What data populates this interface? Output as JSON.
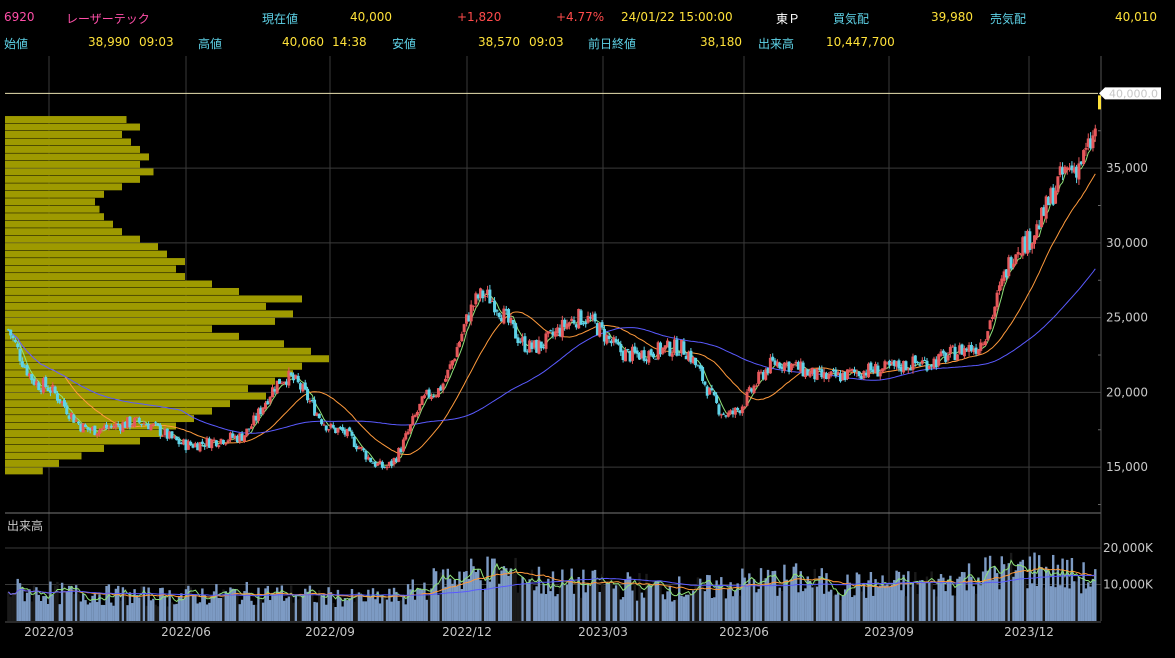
{
  "header": {
    "code": "6920",
    "name": "レーザーテック",
    "price_label": "現在値",
    "price": "40,000",
    "change": "+1,820",
    "change_pct": "+4.77%",
    "datetime": "24/01/22  15:00:00",
    "market": "東Ｐ",
    "bid_label": "買気配",
    "bid": "39,980",
    "ask_label": "売気配",
    "ask": "40,010",
    "open_label": "始値",
    "open": "38,990",
    "open_time": "09:03",
    "high_label": "高値",
    "high": "40,060",
    "high_time": "14:38",
    "low_label": "安値",
    "low": "38,570",
    "low_time": "09:03",
    "prev_close_label": "前日終値",
    "prev_close": "38,180",
    "volume_label": "出来高",
    "volume": "10,447,700"
  },
  "chart_data": {
    "type": "candlestick",
    "price_axis": {
      "ticks": [
        15000,
        20000,
        25000,
        30000,
        35000
      ],
      "tick_labels": [
        "15,000",
        "20,000",
        "25,000",
        "30,000",
        "35,000"
      ],
      "ylim": [
        12000,
        42500
      ]
    },
    "last_price_marker": "40,000.0",
    "last_price": 40000,
    "volume_panel": {
      "label": "出来高",
      "ticks": [
        10000,
        20000
      ],
      "tick_labels": [
        "10,000K",
        "20,000K"
      ],
      "ylim": [
        0,
        23000
      ]
    },
    "x_ticks": [
      "2022/03",
      "2022/06",
      "2022/09",
      "2022/12",
      "2023/03",
      "2023/06",
      "2023/09",
      "2023/12"
    ],
    "grid": true,
    "series": [
      {
        "name": "price",
        "x": [
          "2022/02",
          "2022/03",
          "2022/04",
          "2022/05",
          "2022/06",
          "2022/07",
          "2022/08",
          "2022/09",
          "2022/10",
          "2022/11",
          "2022/12",
          "2023/01",
          "2023/02",
          "2023/03",
          "2023/04",
          "2023/05",
          "2023/06",
          "2023/07",
          "2023/08",
          "2023/09",
          "2023/10",
          "2023/11",
          "2023/12",
          "2024/01"
        ],
        "values": [
          25500,
          20500,
          17500,
          18000,
          16500,
          17000,
          21000,
          17500,
          15000,
          20000,
          26500,
          23000,
          25000,
          22500,
          23000,
          18500,
          22000,
          21000,
          21500,
          22000,
          23000,
          30000,
          35000,
          40000
        ]
      },
      {
        "name": "volume",
        "x": [
          "2022/02",
          "2022/03",
          "2022/04",
          "2022/05",
          "2022/06",
          "2022/07",
          "2022/08",
          "2022/09",
          "2022/10",
          "2022/11",
          "2022/12",
          "2023/01",
          "2023/02",
          "2023/03",
          "2023/04",
          "2023/05",
          "2023/06",
          "2023/07",
          "2023/08",
          "2023/09",
          "2023/10",
          "2023/11",
          "2023/12",
          "2024/01"
        ],
        "values": [
          9000,
          8000,
          7500,
          7000,
          7500,
          8000,
          7500,
          6500,
          7000,
          13000,
          14000,
          11000,
          10500,
          10000,
          9000,
          11000,
          12000,
          10000,
          10500,
          11000,
          14000,
          15000,
          12000,
          11000
        ]
      }
    ],
    "volume_profile": [
      {
        "price": 14750,
        "size": 42
      },
      {
        "price": 15250,
        "size": 60
      },
      {
        "price": 15750,
        "size": 85
      },
      {
        "price": 16250,
        "size": 110
      },
      {
        "price": 16750,
        "size": 150
      },
      {
        "price": 17250,
        "size": 175
      },
      {
        "price": 17750,
        "size": 190
      },
      {
        "price": 18250,
        "size": 210
      },
      {
        "price": 18750,
        "size": 230
      },
      {
        "price": 19250,
        "size": 250
      },
      {
        "price": 19750,
        "size": 290
      },
      {
        "price": 20250,
        "size": 270
      },
      {
        "price": 20750,
        "size": 300
      },
      {
        "price": 21250,
        "size": 320
      },
      {
        "price": 21750,
        "size": 330
      },
      {
        "price": 22250,
        "size": 360
      },
      {
        "price": 22750,
        "size": 340
      },
      {
        "price": 23250,
        "size": 310
      },
      {
        "price": 23750,
        "size": 260
      },
      {
        "price": 24250,
        "size": 230
      },
      {
        "price": 24750,
        "size": 300
      },
      {
        "price": 25250,
        "size": 320
      },
      {
        "price": 25750,
        "size": 290
      },
      {
        "price": 26250,
        "size": 330
      },
      {
        "price": 26750,
        "size": 260
      },
      {
        "price": 27250,
        "size": 230
      },
      {
        "price": 27750,
        "size": 200
      },
      {
        "price": 28250,
        "size": 190
      },
      {
        "price": 28750,
        "size": 200
      },
      {
        "price": 29250,
        "size": 180
      },
      {
        "price": 29750,
        "size": 170
      },
      {
        "price": 30250,
        "size": 150
      },
      {
        "price": 30750,
        "size": 130
      },
      {
        "price": 31250,
        "size": 120
      },
      {
        "price": 31750,
        "size": 110
      },
      {
        "price": 32250,
        "size": 105
      },
      {
        "price": 32750,
        "size": 100
      },
      {
        "price": 33250,
        "size": 110
      },
      {
        "price": 33750,
        "size": 130
      },
      {
        "price": 34250,
        "size": 150
      },
      {
        "price": 34750,
        "size": 165
      },
      {
        "price": 35250,
        "size": 150
      },
      {
        "price": 35750,
        "size": 160
      },
      {
        "price": 36250,
        "size": 150
      },
      {
        "price": 36750,
        "size": 140
      },
      {
        "price": 37250,
        "size": 130
      },
      {
        "price": 37750,
        "size": 150
      },
      {
        "price": 38250,
        "size": 135
      }
    ],
    "colors": {
      "up": "#e5585b",
      "down": "#5fd3e8",
      "ma_short": "#8fe37a",
      "ma_mid": "#ff9a3c",
      "ma_long": "#5a5aff",
      "profile": "#9e9a00",
      "volume_bar": "#7d9bc4",
      "grid": "#3a3a3a"
    }
  }
}
